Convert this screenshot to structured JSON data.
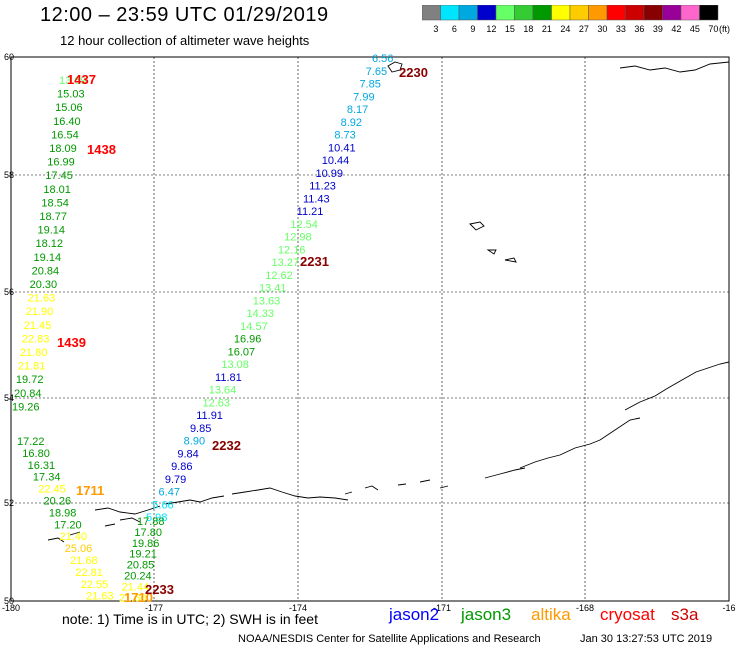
{
  "header": {
    "title": "12:00 – 23:59 UTC 01/29/2019",
    "subtitle": "12 hour collection of altimeter wave heights"
  },
  "legend": {
    "unit": "(ft)",
    "bins": [
      {
        "label": "3",
        "color": "#808080"
      },
      {
        "label": "6",
        "color": "#00e5ff"
      },
      {
        "label": "9",
        "color": "#00a8e0"
      },
      {
        "label": "12",
        "color": "#0000cc"
      },
      {
        "label": "15",
        "color": "#66ff66"
      },
      {
        "label": "18",
        "color": "#33cc33"
      },
      {
        "label": "21",
        "color": "#009900"
      },
      {
        "label": "24",
        "color": "#ffff00"
      },
      {
        "label": "27",
        "color": "#ffcc00"
      },
      {
        "label": "30",
        "color": "#ff9900"
      },
      {
        "label": "33",
        "color": "#ff0000"
      },
      {
        "label": "36",
        "color": "#cc0000"
      },
      {
        "label": "39",
        "color": "#880000"
      },
      {
        "label": "42",
        "color": "#990099"
      },
      {
        "label": "45",
        "color": "#ff66cc"
      },
      {
        "label": "70",
        "color": "#000000"
      }
    ]
  },
  "axes": {
    "lon_ticks": [
      "-180",
      "-177",
      "-174",
      "-171",
      "-168",
      "-16"
    ],
    "lat_ticks": [
      "60",
      "58",
      "56",
      "54",
      "52",
      "50"
    ]
  },
  "tracks": {
    "t1": [
      {
        "v": "13.69",
        "c": "#66ff66"
      },
      {
        "v": "15.03",
        "c": "#009900"
      },
      {
        "v": "15.06",
        "c": "#009900"
      },
      {
        "v": "16.40",
        "c": "#009900"
      },
      {
        "v": "16.54",
        "c": "#009900"
      },
      {
        "v": "18.09",
        "c": "#009900"
      },
      {
        "v": "16.99",
        "c": "#009900"
      },
      {
        "v": "17.45",
        "c": "#009900"
      },
      {
        "v": "18.01",
        "c": "#009900"
      },
      {
        "v": "18.54",
        "c": "#009900"
      },
      {
        "v": "18.77",
        "c": "#009900"
      },
      {
        "v": "19.14",
        "c": "#009900"
      },
      {
        "v": "18.12",
        "c": "#009900"
      },
      {
        "v": "19.14",
        "c": "#009900"
      },
      {
        "v": "20.84",
        "c": "#009900"
      },
      {
        "v": "20.30",
        "c": "#009900"
      },
      {
        "v": "21.63",
        "c": "#ffff00"
      },
      {
        "v": "21.90",
        "c": "#ffff00"
      },
      {
        "v": "21.45",
        "c": "#ffff00"
      },
      {
        "v": "22.83",
        "c": "#ffff00"
      },
      {
        "v": "21.80",
        "c": "#ffff00"
      },
      {
        "v": "21.81",
        "c": "#ffff00"
      },
      {
        "v": "19.72",
        "c": "#009900"
      },
      {
        "v": "20.84",
        "c": "#009900"
      },
      {
        "v": "19.26",
        "c": "#009900"
      }
    ],
    "t2": [
      {
        "v": "6.56",
        "c": "#00a8e0"
      },
      {
        "v": "7.65",
        "c": "#00a8e0"
      },
      {
        "v": "7.85",
        "c": "#00a8e0"
      },
      {
        "v": "7.99",
        "c": "#00a8e0"
      },
      {
        "v": "8.17",
        "c": "#00a8e0"
      },
      {
        "v": "8.92",
        "c": "#00a8e0"
      },
      {
        "v": "8.73",
        "c": "#00a8e0"
      },
      {
        "v": "10.41",
        "c": "#0000cc"
      },
      {
        "v": "10.44",
        "c": "#0000cc"
      },
      {
        "v": "10.99",
        "c": "#0000cc"
      },
      {
        "v": "11.23",
        "c": "#0000cc"
      },
      {
        "v": "11.43",
        "c": "#0000cc"
      },
      {
        "v": "11.21",
        "c": "#0000cc"
      },
      {
        "v": "12.54",
        "c": "#66ff66"
      },
      {
        "v": "12.98",
        "c": "#66ff66"
      },
      {
        "v": "12.16",
        "c": "#66ff66"
      },
      {
        "v": "13.27",
        "c": "#66ff66"
      },
      {
        "v": "12.62",
        "c": "#66ff66"
      },
      {
        "v": "13.41",
        "c": "#66ff66"
      },
      {
        "v": "13.63",
        "c": "#66ff66"
      },
      {
        "v": "14.33",
        "c": "#66ff66"
      },
      {
        "v": "14.57",
        "c": "#66ff66"
      },
      {
        "v": "16.96",
        "c": "#009900"
      },
      {
        "v": "16.07",
        "c": "#009900"
      },
      {
        "v": "13.08",
        "c": "#66ff66"
      },
      {
        "v": "11.81",
        "c": "#0000cc"
      },
      {
        "v": "13.64",
        "c": "#66ff66"
      },
      {
        "v": "12.63",
        "c": "#66ff66"
      },
      {
        "v": "11.91",
        "c": "#0000cc"
      },
      {
        "v": "9.85",
        "c": "#0000cc"
      },
      {
        "v": "8.90",
        "c": "#00a8e0"
      },
      {
        "v": "9.84",
        "c": "#0000cc"
      },
      {
        "v": "9.86",
        "c": "#0000cc"
      },
      {
        "v": "9.79",
        "c": "#0000cc"
      },
      {
        "v": "6.47",
        "c": "#00a8e0"
      },
      {
        "v": "5.66",
        "c": "#00e5ff"
      },
      {
        "v": "5.98",
        "c": "#00e5ff"
      }
    ],
    "t3": [
      {
        "v": "17.22",
        "c": "#009900"
      },
      {
        "v": "16.80",
        "c": "#009900"
      },
      {
        "v": "16.31",
        "c": "#009900"
      },
      {
        "v": "17.34",
        "c": "#009900"
      },
      {
        "v": "22.45",
        "c": "#ffff00"
      },
      {
        "v": "20.26",
        "c": "#009900"
      },
      {
        "v": "18.98",
        "c": "#009900"
      },
      {
        "v": "17.20",
        "c": "#009900"
      },
      {
        "v": "21.40",
        "c": "#ffff00"
      },
      {
        "v": "25.06",
        "c": "#ffcc00"
      },
      {
        "v": "21.68",
        "c": "#ffff00"
      },
      {
        "v": "22.81",
        "c": "#ffff00"
      },
      {
        "v": "22.55",
        "c": "#ffff00"
      },
      {
        "v": "21.63",
        "c": "#ffff00"
      }
    ],
    "t4": [
      {
        "v": "17.88",
        "c": "#009900"
      },
      {
        "v": "17.80",
        "c": "#009900"
      },
      {
        "v": "19.86",
        "c": "#009900"
      },
      {
        "v": "19.21",
        "c": "#009900"
      },
      {
        "v": "20.85",
        "c": "#009900"
      },
      {
        "v": "20.24",
        "c": "#009900"
      },
      {
        "v": "21.44",
        "c": "#ffff00"
      },
      {
        "v": "21.60",
        "c": "#ffff00"
      }
    ]
  },
  "time_labels": [
    {
      "t": "1437",
      "c": "#ff0000"
    },
    {
      "t": "1438",
      "c": "#ff0000"
    },
    {
      "t": "1439",
      "c": "#ff0000"
    },
    {
      "t": "2230",
      "c": "#880000"
    },
    {
      "t": "2231",
      "c": "#880000"
    },
    {
      "t": "2232",
      "c": "#880000"
    },
    {
      "t": "1711",
      "c": "#ff9900"
    },
    {
      "t": "1710",
      "c": "#ff9900"
    },
    {
      "t": "2233",
      "c": "#880000"
    }
  ],
  "footer": {
    "note": "note:  1) Time is in UTC;  2) SWH is in feet",
    "satellites": [
      {
        "name": "jason2",
        "color": "#0000ff"
      },
      {
        "name": "jason3",
        "color": "#009900"
      },
      {
        "name": "altika",
        "color": "#ff9900"
      },
      {
        "name": "cryosat",
        "color": "#ff0000"
      },
      {
        "name": "s3a",
        "color": "#cc0000"
      }
    ],
    "credit": "NOAA/NESDIS Center for Satellite Applications and Research",
    "timestamp": "Jan 30 13:27:53 UTC 2019"
  }
}
